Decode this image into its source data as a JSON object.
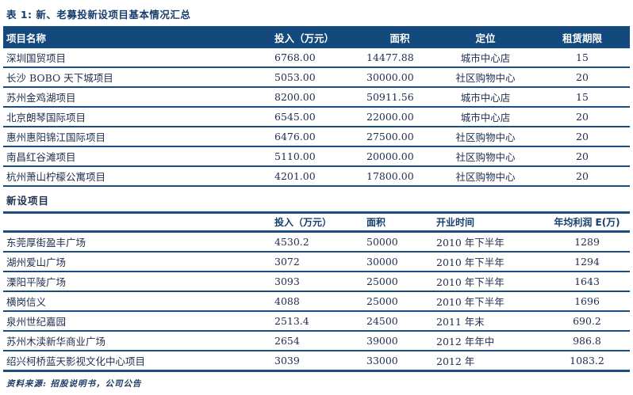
{
  "title": "表 1: 新、老募投新设项目基本情况汇总",
  "colors": {
    "navy_header": "#14497d",
    "rule_line": "#1b4e80",
    "text": "#1d2d4d"
  },
  "section1": {
    "headers": [
      "项目名称",
      "投入（万元）",
      "面积",
      "定位",
      "租赁期限"
    ],
    "rows": [
      [
        "深圳国贸项目",
        "6768.00",
        "14477.88",
        "城市中心店",
        "15"
      ],
      [
        "长沙 BOBO 天下城项目",
        "5053.00",
        "30000.00",
        "社区购物中心",
        "20"
      ],
      [
        "苏州金鸡湖项目",
        "8200.00",
        "50911.56",
        "城市中心店",
        "15"
      ],
      [
        "北京朗琴国际项目",
        "6545.00",
        "22000.00",
        "城市中心店",
        "20"
      ],
      [
        "惠州惠阳锦江国际项目",
        "6476.00",
        "27500.00",
        "社区购物中心",
        "20"
      ],
      [
        "南昌红谷滩项目",
        "5110.00",
        "20000.00",
        "社区购物中心",
        "20"
      ],
      [
        "杭州萧山柠檬公寓项目",
        "4201.00",
        "17800.00",
        "社区购物中心",
        "20"
      ]
    ]
  },
  "section2": {
    "label": "新设项目",
    "headers": [
      "",
      "投入（万元）",
      "面积",
      "开业时间",
      "年均利润 E(万)"
    ],
    "rows": [
      [
        "东莞厚街盈丰广场",
        "4530.2",
        "50000",
        "2010 年下半年",
        "1289"
      ],
      [
        "湖州爱山广场",
        "3072",
        "30000",
        "2010 年下半年",
        "1294"
      ],
      [
        "溧阳平陵广场",
        "3093",
        "25000",
        "2010 年下半年",
        "1643"
      ],
      [
        "横岗信义",
        "4088",
        "25000",
        "2010 年下半年",
        "1696"
      ],
      [
        "泉州世纪嘉园",
        "2513.4",
        "24500",
        "2011 年末",
        "690.2"
      ],
      [
        "苏州木渎新华商业广场",
        "2654",
        "39000",
        "2012 年年中",
        "986.8"
      ],
      [
        "绍兴柯桥蓝天影视文化中心项目",
        "3039",
        "33000",
        "2012 年",
        "1083.2"
      ]
    ]
  },
  "footer": {
    "source": "资料来源: 招股说明书，公司公告"
  }
}
